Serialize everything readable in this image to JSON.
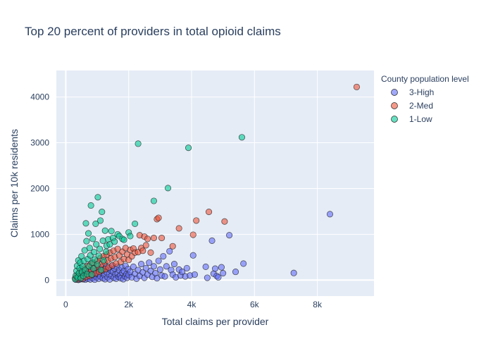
{
  "chart_data": {
    "type": "scatter",
    "title": "Top 20 percent of providers in total opioid claims",
    "xlabel": "Total claims per provider",
    "ylabel": "Claims per 10k residents",
    "xlim": [
      -300,
      9800
    ],
    "ylim": [
      -350,
      4580
    ],
    "xticks": [
      {
        "v": 0,
        "label": "0"
      },
      {
        "v": 2000,
        "label": "2k"
      },
      {
        "v": 4000,
        "label": "4k"
      },
      {
        "v": 6000,
        "label": "6k"
      },
      {
        "v": 8000,
        "label": "8k"
      }
    ],
    "yticks": [
      {
        "v": 0,
        "label": "0"
      },
      {
        "v": 1000,
        "label": "1000"
      },
      {
        "v": 2000,
        "label": "2000"
      },
      {
        "v": 3000,
        "label": "3000"
      },
      {
        "v": 4000,
        "label": "4000"
      }
    ],
    "grid": true,
    "legend": {
      "title": "County population level",
      "position": "top-right"
    },
    "series": [
      {
        "name": "3-High",
        "color": "#636efa",
        "points": [
          [
            320,
            10
          ],
          [
            360,
            25
          ],
          [
            400,
            5
          ],
          [
            420,
            40
          ],
          [
            450,
            15
          ],
          [
            480,
            60
          ],
          [
            500,
            30
          ],
          [
            520,
            80
          ],
          [
            550,
            20
          ],
          [
            580,
            110
          ],
          [
            600,
            50
          ],
          [
            620,
            10
          ],
          [
            650,
            140
          ],
          [
            680,
            70
          ],
          [
            700,
            30
          ],
          [
            720,
            180
          ],
          [
            750,
            95
          ],
          [
            780,
            15
          ],
          [
            800,
            220
          ],
          [
            820,
            120
          ],
          [
            850,
            45
          ],
          [
            880,
            200
          ],
          [
            900,
            90
          ],
          [
            920,
            10
          ],
          [
            950,
            150
          ],
          [
            980,
            60
          ],
          [
            1000,
            250
          ],
          [
            1030,
            130
          ],
          [
            1050,
            30
          ],
          [
            1080,
            190
          ],
          [
            1100,
            80
          ],
          [
            1130,
            280
          ],
          [
            1150,
            160
          ],
          [
            1180,
            40
          ],
          [
            1200,
            230
          ],
          [
            1230,
            110
          ],
          [
            1250,
            20
          ],
          [
            1280,
            300
          ],
          [
            1300,
            170
          ],
          [
            1330,
            60
          ],
          [
            1350,
            260
          ],
          [
            1380,
            130
          ],
          [
            1400,
            15
          ],
          [
            1430,
            210
          ],
          [
            1450,
            90
          ],
          [
            1480,
            320
          ],
          [
            1500,
            180
          ],
          [
            1530,
            50
          ],
          [
            1550,
            250
          ],
          [
            1580,
            120
          ],
          [
            1600,
            30
          ],
          [
            1630,
            290
          ],
          [
            1650,
            150
          ],
          [
            1680,
            70
          ],
          [
            1700,
            220
          ],
          [
            1730,
            100
          ],
          [
            1750,
            40
          ],
          [
            1780,
            270
          ],
          [
            1800,
            160
          ],
          [
            1830,
            20
          ],
          [
            1850,
            200
          ],
          [
            1880,
            80
          ],
          [
            1900,
            310
          ],
          [
            1930,
            130
          ],
          [
            1950,
            50
          ],
          [
            1980,
            240
          ],
          [
            2000,
            110
          ],
          [
            2050,
            180
          ],
          [
            2100,
            60
          ],
          [
            2150,
            290
          ],
          [
            2200,
            140
          ],
          [
            2250,
            30
          ],
          [
            2300,
            220
          ],
          [
            2350,
            90
          ],
          [
            2400,
            350
          ],
          [
            2450,
            170
          ],
          [
            2500,
            50
          ],
          [
            2550,
            260
          ],
          [
            2600,
            120
          ],
          [
            2650,
            380
          ],
          [
            2700,
            200
          ],
          [
            2750,
            70
          ],
          [
            2800,
            300
          ],
          [
            2850,
            150
          ],
          [
            2900,
            40
          ],
          [
            2950,
            420
          ],
          [
            3000,
            230
          ],
          [
            3050,
            100
          ],
          [
            3100,
            520
          ],
          [
            3150,
            80
          ],
          [
            3200,
            300
          ],
          [
            3300,
            630
          ],
          [
            3350,
            220
          ],
          [
            3400,
            120
          ],
          [
            3450,
            350
          ],
          [
            3500,
            60
          ],
          [
            3600,
            230
          ],
          [
            3650,
            100
          ],
          [
            3700,
            180
          ],
          [
            3800,
            80
          ],
          [
            3850,
            260
          ],
          [
            3950,
            100
          ],
          [
            4050,
            540
          ],
          [
            4100,
            120
          ],
          [
            4450,
            290
          ],
          [
            4500,
            50
          ],
          [
            4650,
            860
          ],
          [
            4700,
            140
          ],
          [
            4750,
            250
          ],
          [
            4800,
            90
          ],
          [
            4850,
            60
          ],
          [
            4950,
            280
          ],
          [
            5000,
            150
          ],
          [
            5200,
            980
          ],
          [
            5400,
            180
          ],
          [
            5650,
            360
          ],
          [
            7250,
            155
          ],
          [
            8400,
            1440
          ]
        ]
      },
      {
        "name": "2-Med",
        "color": "#ef553b",
        "points": [
          [
            300,
            40
          ],
          [
            350,
            90
          ],
          [
            380,
            20
          ],
          [
            420,
            150
          ],
          [
            450,
            60
          ],
          [
            480,
            200
          ],
          [
            520,
            110
          ],
          [
            550,
            30
          ],
          [
            580,
            250
          ],
          [
            620,
            140
          ],
          [
            650,
            70
          ],
          [
            680,
            300
          ],
          [
            720,
            180
          ],
          [
            750,
            90
          ],
          [
            780,
            340
          ],
          [
            820,
            220
          ],
          [
            850,
            120
          ],
          [
            880,
            380
          ],
          [
            920,
            260
          ],
          [
            950,
            150
          ],
          [
            1000,
            420
          ],
          [
            1030,
            300
          ],
          [
            1060,
            180
          ],
          [
            1100,
            480
          ],
          [
            1130,
            340
          ],
          [
            1160,
            210
          ],
          [
            1200,
            520
          ],
          [
            1230,
            390
          ],
          [
            1260,
            240
          ],
          [
            1300,
            560
          ],
          [
            1330,
            430
          ],
          [
            1360,
            280
          ],
          [
            1400,
            600
          ],
          [
            1440,
            470
          ],
          [
            1480,
            320
          ],
          [
            1520,
            640
          ],
          [
            1560,
            500
          ],
          [
            1600,
            360
          ],
          [
            1650,
            680
          ],
          [
            1700,
            540
          ],
          [
            1750,
            400
          ],
          [
            1800,
            620
          ],
          [
            1850,
            460
          ],
          [
            1900,
            700
          ],
          [
            1950,
            560
          ],
          [
            2000,
            440
          ],
          [
            2050,
            660
          ],
          [
            2100,
            520
          ],
          [
            2150,
            690
          ],
          [
            2200,
            600
          ],
          [
            2300,
            610
          ],
          [
            2350,
            980
          ],
          [
            2400,
            700
          ],
          [
            2450,
            640
          ],
          [
            2500,
            950
          ],
          [
            2550,
            760
          ],
          [
            2600,
            900
          ],
          [
            2700,
            600
          ],
          [
            2800,
            920
          ],
          [
            2900,
            1330
          ],
          [
            2950,
            1360
          ],
          [
            3050,
            920
          ],
          [
            3400,
            740
          ],
          [
            3600,
            1130
          ],
          [
            4050,
            990
          ],
          [
            4150,
            1300
          ],
          [
            4550,
            1490
          ],
          [
            5050,
            1280
          ],
          [
            9250,
            4220
          ]
        ]
      },
      {
        "name": "1-Low",
        "color": "#00cc96",
        "points": [
          [
            300,
            20
          ],
          [
            320,
            100
          ],
          [
            340,
            200
          ],
          [
            360,
            310
          ],
          [
            380,
            60
          ],
          [
            400,
            430
          ],
          [
            420,
            150
          ],
          [
            440,
            260
          ],
          [
            460,
            380
          ],
          [
            480,
            40
          ],
          [
            500,
            520
          ],
          [
            520,
            180
          ],
          [
            540,
            300
          ],
          [
            560,
            90
          ],
          [
            580,
            420
          ],
          [
            600,
            650
          ],
          [
            620,
            220
          ],
          [
            640,
            1240
          ],
          [
            660,
            850
          ],
          [
            680,
            130
          ],
          [
            700,
            460
          ],
          [
            720,
            1020
          ],
          [
            740,
            300
          ],
          [
            760,
            700
          ],
          [
            780,
            540
          ],
          [
            800,
            1630
          ],
          [
            820,
            120
          ],
          [
            840,
            380
          ],
          [
            860,
            900
          ],
          [
            880,
            250
          ],
          [
            900,
            610
          ],
          [
            920,
            450
          ],
          [
            950,
            1230
          ],
          [
            970,
            780
          ],
          [
            1000,
            340
          ],
          [
            1020,
            1810
          ],
          [
            1050,
            530
          ],
          [
            1080,
            680
          ],
          [
            1100,
            1300
          ],
          [
            1120,
            220
          ],
          [
            1150,
            1490
          ],
          [
            1180,
            860
          ],
          [
            1200,
            430
          ],
          [
            1250,
            1080
          ],
          [
            1280,
            620
          ],
          [
            1300,
            750
          ],
          [
            1350,
            890
          ],
          [
            1400,
            780
          ],
          [
            1450,
            1070
          ],
          [
            1500,
            920
          ],
          [
            1550,
            840
          ],
          [
            1650,
            1000
          ],
          [
            1700,
            960
          ],
          [
            1800,
            900
          ],
          [
            1850,
            880
          ],
          [
            2000,
            1040
          ],
          [
            2050,
            960
          ],
          [
            2200,
            1230
          ],
          [
            2300,
            2980
          ],
          [
            2800,
            1730
          ],
          [
            3250,
            2010
          ],
          [
            3900,
            2890
          ],
          [
            5600,
            3120
          ]
        ]
      }
    ]
  }
}
